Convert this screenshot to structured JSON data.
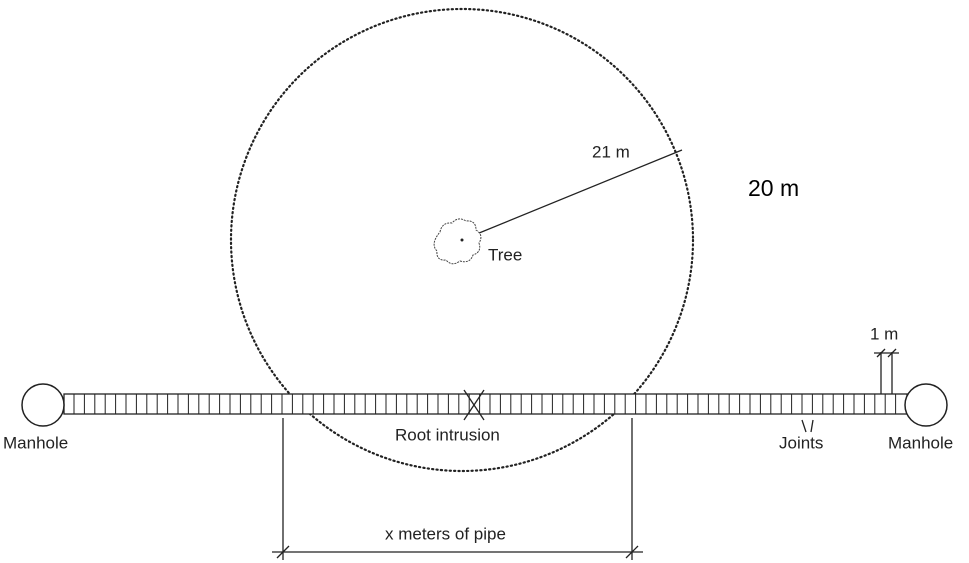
{
  "labels": {
    "radius": "21 m",
    "side_note": "20 m",
    "tree": "Tree",
    "joint_spacing": "1 m",
    "manhole_left": "Manhole",
    "manhole_right": "Manhole",
    "root_intrusion": "Root intrusion",
    "joints": "Joints",
    "pipe_length": "x meters of pipe"
  }
}
